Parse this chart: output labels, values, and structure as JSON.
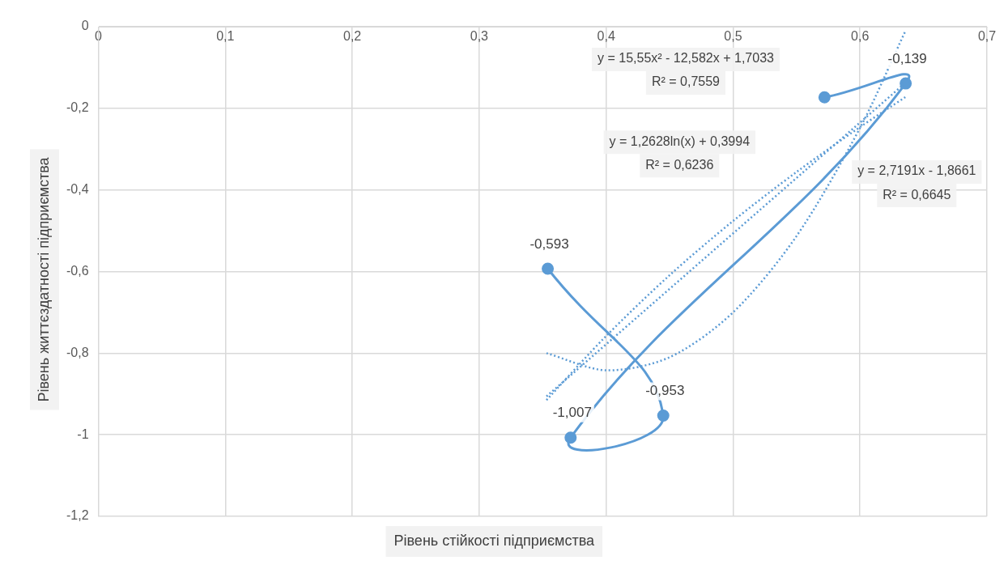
{
  "chart_data": {
    "type": "line",
    "xlabel": "Рівень стійкості підприємства",
    "ylabel": "Рівень життєздатності підприємства",
    "xlim": [
      0,
      0.7
    ],
    "xticks": [
      0,
      {
        "value": 0.1,
        "label": "0,1"
      },
      {
        "value": 0.2,
        "label": "0,2"
      },
      {
        "value": 0.3,
        "label": "0,3"
      },
      {
        "value": 0.4,
        "label": "0,4"
      },
      {
        "value": 0.5,
        "label": "0,5"
      },
      {
        "value": 0.6,
        "label": "0,6"
      },
      {
        "value": 0.7,
        "label": "0,7"
      }
    ],
    "ylim": [
      -1.2,
      0
    ],
    "yticks": [
      {
        "value": -1.2,
        "label": "-1,2"
      },
      -1,
      {
        "value": -0.8,
        "label": "-0,8"
      },
      {
        "value": -0.6,
        "label": "-0,6"
      },
      {
        "value": -0.4,
        "label": "-0,4"
      },
      {
        "value": -0.2,
        "label": "-0,2"
      },
      0
    ],
    "grid": true,
    "legend": false,
    "series": [
      {
        "color": "#5b9bd5",
        "marker": "circle",
        "line_style": "solid",
        "x": [
          0.354,
          0.445,
          0.372,
          0.636,
          0.572
        ],
        "values": [
          -0.593,
          -0.953,
          -1.007,
          -0.139,
          -0.173
        ],
        "value_labels": [
          "-0,593",
          "-0,953",
          "-1,007",
          "-0,139",
          null
        ]
      },
      {
        "color": "#5b9bd5",
        "marker": "none",
        "line_style": "dotted",
        "x": [
          0.353,
          0.636
        ],
        "values": [
          -0.906,
          -0.137
        ]
      },
      {
        "color": "#5b9bd5",
        "marker": "none",
        "line_style": "dotted",
        "x": [
          0.353,
          0.4,
          0.45,
          0.5,
          0.55,
          0.6,
          0.636
        ],
        "values": [
          -0.915,
          -0.758,
          -0.609,
          -0.476,
          -0.356,
          -0.246,
          -0.172
        ]
      },
      {
        "color": "#5b9bd5",
        "marker": "none",
        "line_style": "dotted",
        "x": [
          0.353,
          0.4,
          0.45,
          0.5,
          0.55,
          0.6,
          0.636
        ],
        "values": [
          -0.8,
          -0.842,
          -0.81,
          -0.7,
          -0.513,
          -0.248,
          -0.009
        ]
      }
    ],
    "annotations": [
      "y = 15,55x² - 12,582x + 1,7033",
      "R² = 0,7559",
      "y = 1,2628ln(x) + 0,3994",
      "R² = 0,6236",
      "y = 2,7191x - 1,8661",
      "R² = 0,6645"
    ]
  }
}
